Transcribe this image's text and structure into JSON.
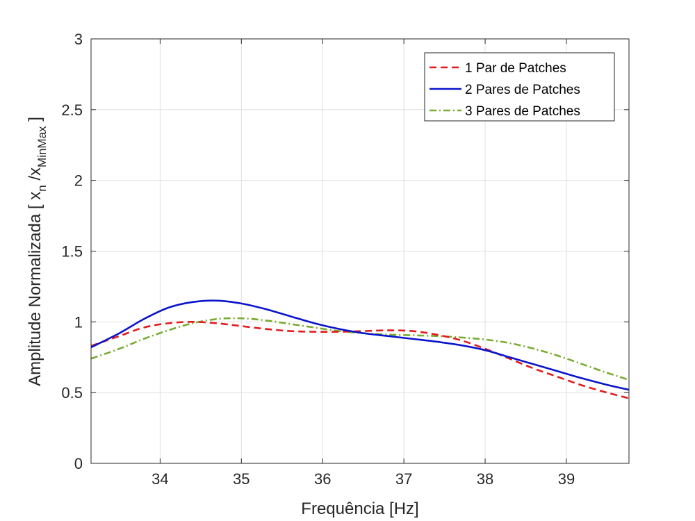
{
  "chart_data": {
    "type": "line",
    "xlabel": "Frequência [Hz]",
    "ylabel": {
      "prefix": "Amplitude Normalizada [ x",
      "sub1": "n",
      "mid": " /x",
      "sub2": "MinMax",
      "suffix": " ]"
    },
    "xlim": [
      33.15,
      39.77
    ],
    "ylim": [
      0,
      3
    ],
    "xticks": [
      34,
      35,
      36,
      37,
      38,
      39
    ],
    "xtick_labels": [
      "34",
      "35",
      "36",
      "37",
      "38",
      "39"
    ],
    "yticks": [
      0,
      0.5,
      1,
      1.5,
      2,
      2.5,
      3
    ],
    "ytick_labels": [
      "0",
      "0.5",
      "1",
      "1.5",
      "2",
      "2.5",
      "3"
    ],
    "grid": true,
    "legend_position": "top-right",
    "series": [
      {
        "name": "1 Par de Patches",
        "color": "#e31a1c",
        "dash": "dashed",
        "x": [
          33.15,
          33.5,
          33.8,
          34.1,
          34.4,
          34.7,
          35.0,
          35.3,
          35.6,
          35.9,
          36.2,
          36.5,
          36.8,
          37.1,
          37.4,
          37.7,
          38.0,
          38.3,
          38.6,
          38.9,
          39.2,
          39.5,
          39.77
        ],
        "y": [
          0.83,
          0.9,
          0.96,
          0.99,
          1.0,
          0.99,
          0.97,
          0.95,
          0.935,
          0.93,
          0.93,
          0.935,
          0.94,
          0.935,
          0.91,
          0.87,
          0.81,
          0.74,
          0.67,
          0.61,
          0.55,
          0.5,
          0.46
        ]
      },
      {
        "name": "2 Pares de Patches",
        "color": "#0a14cc",
        "dash": "solid",
        "x": [
          33.15,
          33.5,
          33.8,
          34.1,
          34.4,
          34.7,
          35.0,
          35.3,
          35.6,
          35.9,
          36.2,
          36.5,
          36.8,
          37.1,
          37.4,
          37.7,
          38.0,
          38.3,
          38.6,
          38.9,
          39.2,
          39.5,
          39.77
        ],
        "y": [
          0.82,
          0.92,
          1.02,
          1.1,
          1.14,
          1.15,
          1.13,
          1.09,
          1.04,
          0.99,
          0.95,
          0.92,
          0.9,
          0.88,
          0.86,
          0.835,
          0.8,
          0.75,
          0.7,
          0.65,
          0.6,
          0.555,
          0.52
        ]
      },
      {
        "name": "3 Pares de Patches",
        "color": "#77ac30",
        "dash": "dashdot",
        "x": [
          33.15,
          33.5,
          33.8,
          34.1,
          34.4,
          34.7,
          35.0,
          35.3,
          35.6,
          35.9,
          36.2,
          36.5,
          36.8,
          37.1,
          37.4,
          37.7,
          38.0,
          38.3,
          38.6,
          38.9,
          39.2,
          39.5,
          39.77
        ],
        "y": [
          0.74,
          0.81,
          0.88,
          0.94,
          0.99,
          1.02,
          1.025,
          1.01,
          0.985,
          0.96,
          0.935,
          0.92,
          0.91,
          0.905,
          0.9,
          0.89,
          0.875,
          0.85,
          0.81,
          0.76,
          0.7,
          0.64,
          0.59
        ]
      }
    ]
  }
}
